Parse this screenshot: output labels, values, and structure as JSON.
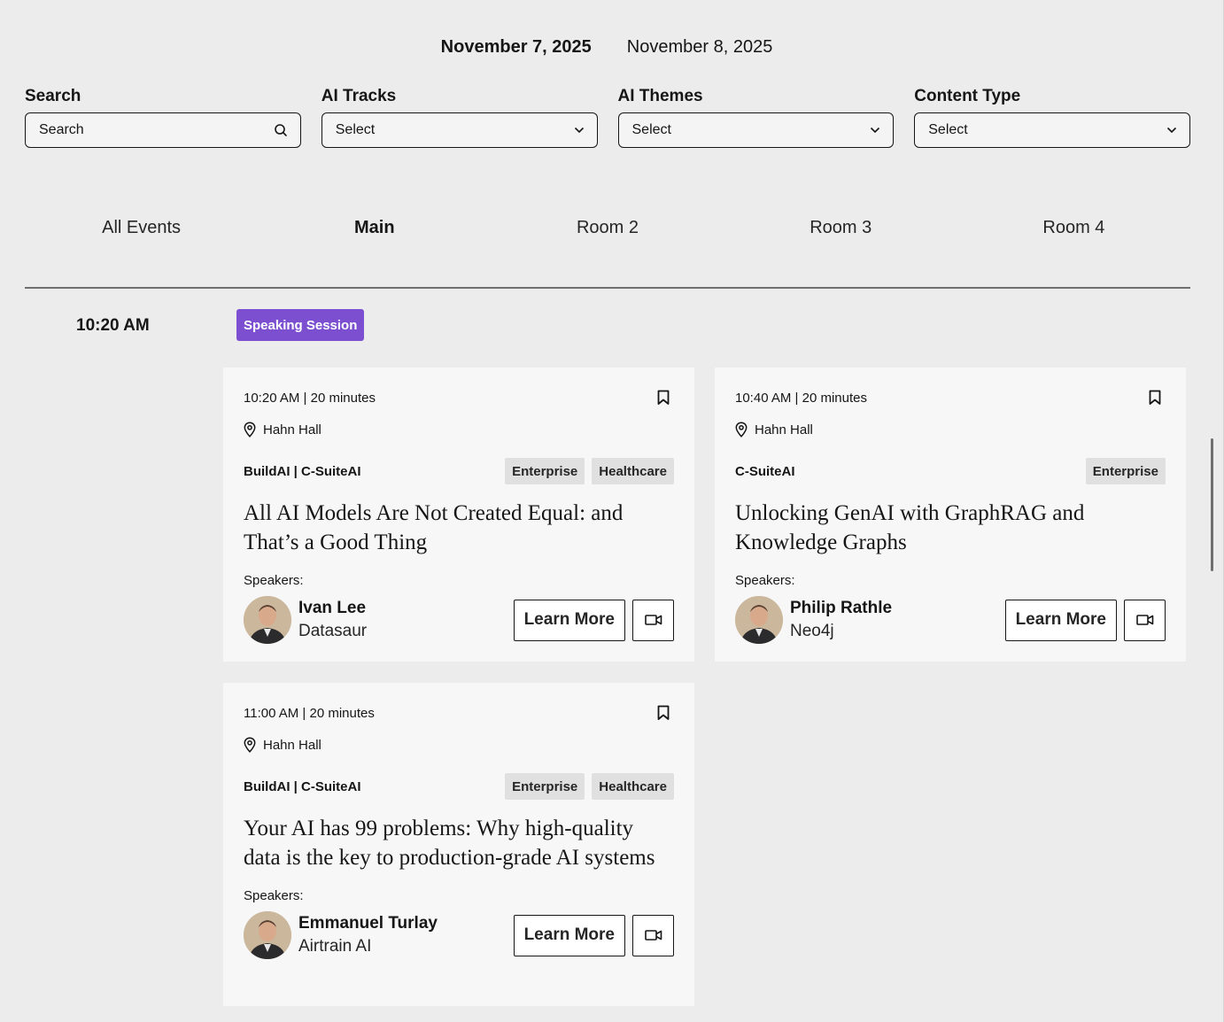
{
  "date_tabs": [
    {
      "label": "November 7, 2025",
      "active": true
    },
    {
      "label": "November 8, 2025",
      "active": false
    }
  ],
  "filters": {
    "search": {
      "label": "Search",
      "placeholder": "Search",
      "icon": "search-icon"
    },
    "tracks": {
      "label": "AI Tracks",
      "value": "Select",
      "icon": "chevron-down-icon"
    },
    "themes": {
      "label": "AI Themes",
      "value": "Select",
      "icon": "chevron-down-icon"
    },
    "content_type": {
      "label": "Content Type",
      "value": "Select",
      "icon": "chevron-down-icon"
    }
  },
  "room_tabs": [
    {
      "label": "All Events",
      "active": false
    },
    {
      "label": "Main",
      "active": true
    },
    {
      "label": "Room 2",
      "active": false
    },
    {
      "label": "Room 3",
      "active": false
    },
    {
      "label": "Room 4",
      "active": false
    }
  ],
  "slot": {
    "time": "10:20 AM",
    "badge": "Speaking Session",
    "badge_color": "#7b4fd0"
  },
  "cards": [
    {
      "time": "10:20 AM | 20 minutes",
      "location": "Hahn Hall",
      "track": "BuildAI | C-SuiteAI",
      "tags": [
        "Enterprise",
        "Healthcare"
      ],
      "title": "All AI Models Are Not Created Equal: and That’s a Good Thing",
      "speakers_label": "Speakers:",
      "speaker_name": "Ivan Lee",
      "speaker_org": "Datasaur",
      "learn_more": "Learn More"
    },
    {
      "time": "10:40 AM | 20 minutes",
      "location": "Hahn Hall",
      "track": "C-SuiteAI",
      "tags": [
        "Enterprise"
      ],
      "title": "Unlocking GenAI with GraphRAG and Knowledge Graphs",
      "speakers_label": "Speakers:",
      "speaker_name": "Philip Rathle",
      "speaker_org": "Neo4j",
      "learn_more": "Learn More"
    },
    {
      "time": "11:00 AM | 20 minutes",
      "location": "Hahn Hall",
      "track": "BuildAI | C-SuiteAI",
      "tags": [
        "Enterprise",
        "Healthcare"
      ],
      "title": "Your AI has 99 problems: Why high-quality data is the key to production-grade AI systems",
      "speakers_label": "Speakers:",
      "speaker_name": "Emmanuel Turlay",
      "speaker_org": "Airtrain AI",
      "learn_more": "Learn More"
    }
  ]
}
